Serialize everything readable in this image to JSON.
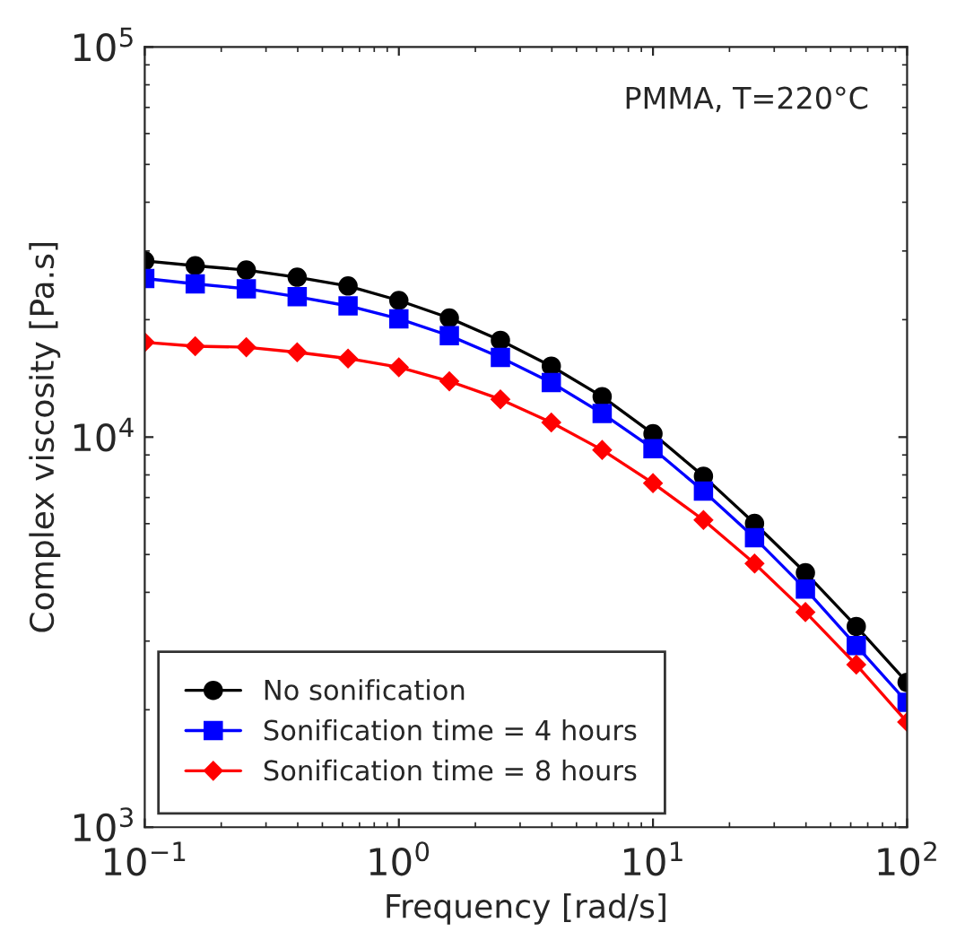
{
  "chart_data": {
    "type": "line",
    "xlabel": "Frequency [rad/s]",
    "ylabel": "Complex viscosity [Pa.s]",
    "log": "xy",
    "annotations": [
      "PMMA, T=220°C"
    ],
    "x": [
      0.1,
      0.158,
      0.251,
      0.398,
      0.631,
      1,
      1.58,
      2.51,
      3.98,
      6.31,
      10,
      15.8,
      25.1,
      39.8,
      63.1,
      100
    ],
    "series": [
      {
        "name": "No sonification",
        "color": "#000000",
        "marker": "circle",
        "values": [
          28300,
          27500,
          26800,
          25700,
          24400,
          22400,
          20200,
          17700,
          15200,
          12700,
          10200,
          7940,
          6010,
          4490,
          3270,
          2350
        ]
      },
      {
        "name": "Sonification time = 4 hours",
        "color": "#0000ff",
        "marker": "square",
        "values": [
          25500,
          24700,
          24000,
          22900,
          21700,
          20100,
          18200,
          16000,
          13800,
          11500,
          9340,
          7270,
          5520,
          4080,
          2920,
          2090
        ]
      },
      {
        "name": "Sonification time = 8 hours",
        "color": "#ff0000",
        "marker": "diamond",
        "values": [
          17500,
          17100,
          17000,
          16500,
          15900,
          15100,
          13900,
          12500,
          10900,
          9270,
          7620,
          6130,
          4740,
          3560,
          2610,
          1860
        ]
      }
    ],
    "xlim": [
      0.1,
      100
    ],
    "ylim": [
      1000,
      100000
    ],
    "xticks": [
      {
        "value": 0.1,
        "label": "10$^{−1}$"
      },
      {
        "value": 1,
        "label": "10$^{0}$"
      },
      {
        "value": 10,
        "label": "10$^{1}$"
      },
      {
        "value": 100,
        "label": "10$^{2}$"
      }
    ],
    "yticks": [
      {
        "value": 1000,
        "label": "10$^{3}$"
      },
      {
        "value": 10000,
        "label": "10$^{4}$"
      },
      {
        "value": 100000,
        "label": "10$^{5}$"
      }
    ],
    "grid": false,
    "legend": "bottom left",
    "line_style": "solid"
  }
}
